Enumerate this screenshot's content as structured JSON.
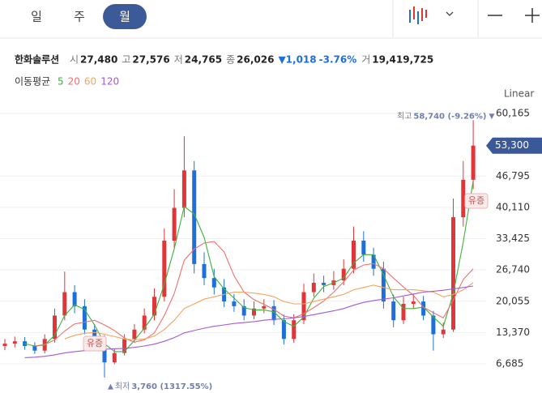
{
  "header": {
    "tabs": [
      "일",
      "주",
      "월"
    ],
    "stock": {
      "name": "한화솔루션",
      "fields": [
        {
          "label": "시",
          "value": "27,480"
        },
        {
          "label": "고",
          "value": "27,576"
        },
        {
          "label": "저",
          "value": "24,765"
        },
        {
          "label": "종",
          "value": "26,026"
        }
      ],
      "change": "▼1,018",
      "change_pct": "-3.76%",
      "volume_label": "거",
      "volume": "19,419,725"
    },
    "ma_title": "이동평균",
    "scale": "Linear"
  },
  "chart_data": {
    "type": "candlestick",
    "up_color": "#e0363a",
    "down_color": "#1e6fd9",
    "candles": {
      "open": [
        10500,
        11000,
        11500,
        10500,
        9500,
        12000,
        17000,
        22000,
        19000,
        14000,
        12000,
        7000,
        9000,
        12000,
        14000,
        17000,
        21000,
        33000,
        40000,
        48000,
        28000,
        25000,
        23000,
        20000,
        19000,
        17000,
        18500,
        19000,
        16000,
        12000,
        16000,
        22000,
        24000,
        23500,
        24500,
        27000,
        33000,
        30000,
        27000,
        20000,
        16000,
        19500,
        20000,
        17000,
        13000,
        14000,
        38000,
        46000
      ],
      "high": [
        12000,
        12500,
        12400,
        11300,
        13000,
        18500,
        26400,
        23500,
        20500,
        15200,
        12800,
        9800,
        13000,
        15200,
        18500,
        22800,
        35600,
        44000,
        55300,
        50000,
        30500,
        27000,
        24800,
        21600,
        20500,
        20000,
        20500,
        20300,
        17200,
        17300,
        23800,
        26000,
        25500,
        26500,
        29000,
        36000,
        35000,
        31500,
        28500,
        21500,
        21000,
        21500,
        21200,
        18000,
        15500,
        42000,
        50000,
        58740
      ],
      "low": [
        9600,
        10200,
        9700,
        8800,
        8900,
        11200,
        16000,
        17500,
        13000,
        11000,
        3760,
        6600,
        8500,
        11200,
        13200,
        16000,
        20000,
        31500,
        38000,
        26000,
        23500,
        21500,
        18800,
        17800,
        16000,
        16200,
        17500,
        15000,
        10800,
        11200,
        15200,
        21000,
        22000,
        22500,
        23500,
        26000,
        28500,
        25500,
        18500,
        14500,
        15200,
        18500,
        16000,
        9500,
        12200,
        13500,
        36000,
        44000
      ],
      "close": [
        11000,
        11500,
        10500,
        9500,
        12000,
        17000,
        22000,
        19000,
        14000,
        12000,
        7000,
        9000,
        12000,
        14000,
        17000,
        21000,
        33000,
        40000,
        48000,
        28000,
        25000,
        23000,
        20000,
        19000,
        17000,
        18500,
        19000,
        16000,
        12000,
        16000,
        22000,
        24000,
        23500,
        24500,
        27000,
        33000,
        30000,
        27000,
        20000,
        16000,
        19500,
        20000,
        17000,
        13000,
        14000,
        38000,
        46000,
        53300
      ]
    },
    "series": [
      {
        "name": "5",
        "color": "#3bb33b",
        "values": [
          null,
          null,
          11000,
          10500,
          10700,
          12800,
          17000,
          19300,
          18300,
          15000,
          11000,
          9300,
          9300,
          11700,
          14300,
          17300,
          23700,
          31300,
          40300,
          38700,
          33700,
          25300,
          22700,
          20700,
          18700,
          18200,
          18200,
          17800,
          15700,
          14700,
          16700,
          20700,
          23200,
          24000,
          25000,
          28200,
          30000,
          30000,
          25700,
          21000,
          18500,
          18500,
          18800,
          16700,
          14700,
          21700,
          32700,
          45800
        ]
      },
      {
        "name": "20",
        "color": "#f07070",
        "values": [
          null,
          null,
          null,
          10500,
          10800,
          11800,
          13700,
          15200,
          15600,
          16000,
          15000,
          13800,
          12200,
          11300,
          11800,
          13300,
          17000,
          21700,
          28800,
          31200,
          32500,
          32800,
          30600,
          25500,
          22000,
          20400,
          19400,
          18300,
          16900,
          16500,
          17400,
          18700,
          20100,
          22000,
          24200,
          26700,
          27800,
          28100,
          27000,
          25000,
          23100,
          21300,
          18800,
          17600,
          16500,
          20300,
          24700,
          27000
        ]
      },
      {
        "name": "60",
        "color": "#f5a35c",
        "values": [
          null,
          null,
          null,
          null,
          null,
          null,
          12000,
          12800,
          13200,
          13400,
          13000,
          12500,
          12000,
          11800,
          12000,
          12600,
          14000,
          16000,
          18500,
          19500,
          20500,
          21000,
          21500,
          22000,
          22000,
          21800,
          21500,
          21000,
          20000,
          19500,
          19500,
          20000,
          20500,
          21000,
          21500,
          22500,
          23000,
          23500,
          23000,
          22500,
          22500,
          22500,
          22300,
          22000,
          21000,
          21500,
          22500,
          24000
        ]
      },
      {
        "name": "120",
        "color": "#a05ad8",
        "values": [
          null,
          null,
          8000,
          8100,
          8300,
          8600,
          9000,
          9300,
          9500,
          9700,
          9800,
          9900,
          10000,
          10200,
          10500,
          10900,
          11500,
          12300,
          13300,
          13800,
          14300,
          14700,
          15000,
          15300,
          15500,
          15700,
          16000,
          16200,
          16300,
          16500,
          16800,
          17200,
          17600,
          18000,
          18500,
          19200,
          19800,
          20200,
          20500,
          20800,
          21200,
          21600,
          22000,
          22200,
          22400,
          22700,
          23000,
          23300
        ]
      }
    ],
    "ylim": [
      3000,
      62300
    ],
    "yticks": [
      {
        "value": 6685,
        "label": "6,685"
      },
      {
        "value": 13370,
        "label": "13,370"
      },
      {
        "value": 20055,
        "label": "20,055"
      },
      {
        "value": 26740,
        "label": "26,740"
      },
      {
        "value": 33425,
        "label": "33,425"
      },
      {
        "value": 40110,
        "label": "40,110"
      },
      {
        "value": 46795,
        "label": "46,795"
      },
      {
        "value": 60165,
        "label": "60,165"
      }
    ],
    "grid": true,
    "current_price": {
      "value": 53300,
      "label": "53,300",
      "color": "#3b5998"
    },
    "annotations": {
      "high_label": "최고",
      "high_text": "58,740 (-9.26%)",
      "high_marker": "▼",
      "low_marker": "▲",
      "low_label": "최저",
      "low_text": "3,760 (1317.55%)",
      "event": "유증"
    }
  }
}
